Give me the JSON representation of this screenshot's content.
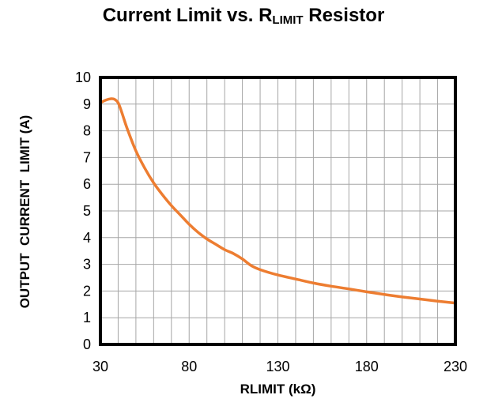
{
  "chart_data": {
    "type": "line",
    "title_main": "Current Limit vs. R",
    "title_sub": "LIMIT",
    "title_tail": " Resistor",
    "xlabel": "RLIMIT (kΩ)",
    "ylabel": "OUTPUT  CURRENT  LIMIT (A)",
    "xlim": [
      30,
      230
    ],
    "ylim": [
      0,
      10
    ],
    "x_ticks": [
      "30",
      "80",
      "130",
      "180",
      "230"
    ],
    "y_ticks": [
      "0",
      "1",
      "2",
      "3",
      "4",
      "5",
      "6",
      "7",
      "8",
      "9",
      "10"
    ],
    "grid": true,
    "line_color": "#ED7D31",
    "series": [
      {
        "x": [
          30,
          33,
          36,
          38,
          40,
          42,
          45,
          50,
          55,
          60,
          65,
          70,
          75,
          80,
          85,
          90,
          95,
          100,
          105,
          110,
          115,
          120,
          130,
          140,
          150,
          160,
          170,
          180,
          190,
          200,
          210,
          220,
          230
        ],
        "y": [
          9.05,
          9.15,
          9.2,
          9.18,
          9.05,
          8.7,
          8.1,
          7.25,
          6.6,
          6.05,
          5.6,
          5.2,
          4.85,
          4.5,
          4.2,
          3.95,
          3.75,
          3.55,
          3.4,
          3.2,
          2.95,
          2.8,
          2.6,
          2.45,
          2.3,
          2.18,
          2.08,
          1.97,
          1.87,
          1.78,
          1.7,
          1.62,
          1.55
        ]
      }
    ]
  }
}
